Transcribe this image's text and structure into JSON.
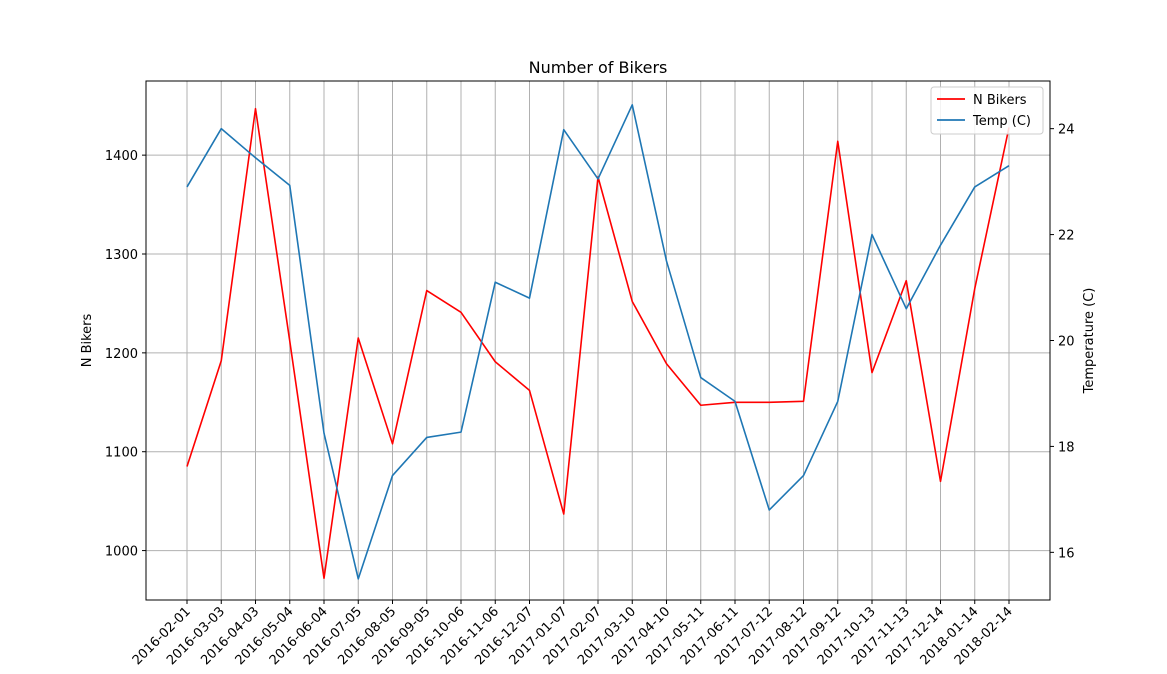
{
  "chart_data": {
    "type": "line",
    "title": "Number of Bikers",
    "ylabel_left": "N Bikers",
    "ylabel_right": "Temperature (C)",
    "grid": true,
    "legend_position": "top-right",
    "x": [
      "2016-02-01",
      "2016-03-03",
      "2016-04-03",
      "2016-05-04",
      "2016-06-04",
      "2016-07-05",
      "2016-08-05",
      "2016-09-05",
      "2016-10-06",
      "2016-11-06",
      "2016-12-07",
      "2017-01-07",
      "2017-02-07",
      "2017-03-10",
      "2017-04-10",
      "2017-05-11",
      "2017-06-11",
      "2017-07-12",
      "2017-08-12",
      "2017-09-12",
      "2017-10-13",
      "2017-11-13",
      "2017-12-14",
      "2018-01-14",
      "2018-02-14"
    ],
    "ylim_left": [
      950,
      1475
    ],
    "yticks_left": [
      1000,
      1100,
      1200,
      1300,
      1400
    ],
    "ylim_right": [
      15.1,
      24.9
    ],
    "yticks_right": [
      16,
      18,
      20,
      22,
      24
    ],
    "series": [
      {
        "name": "N Bikers",
        "axis": "left",
        "color": "#ff0000",
        "values": [
          1085,
          1192,
          1447,
          1212,
          972,
          1215,
          1108,
          1263,
          1241,
          1191,
          1162,
          1037,
          1378,
          1252,
          1189,
          1147,
          1150,
          1150,
          1151,
          1414,
          1180,
          1273,
          1070,
          1265,
          1428
        ]
      },
      {
        "name": "Temp (C)",
        "axis": "right",
        "color": "#1f77b4",
        "values": [
          22.9,
          24.0,
          23.45,
          22.93,
          18.25,
          15.5,
          17.45,
          18.17,
          18.27,
          21.1,
          20.8,
          23.98,
          23.05,
          24.45,
          21.5,
          19.3,
          18.85,
          16.8,
          17.45,
          18.85,
          22.0,
          20.6,
          21.8,
          22.9,
          23.3
        ]
      }
    ]
  }
}
